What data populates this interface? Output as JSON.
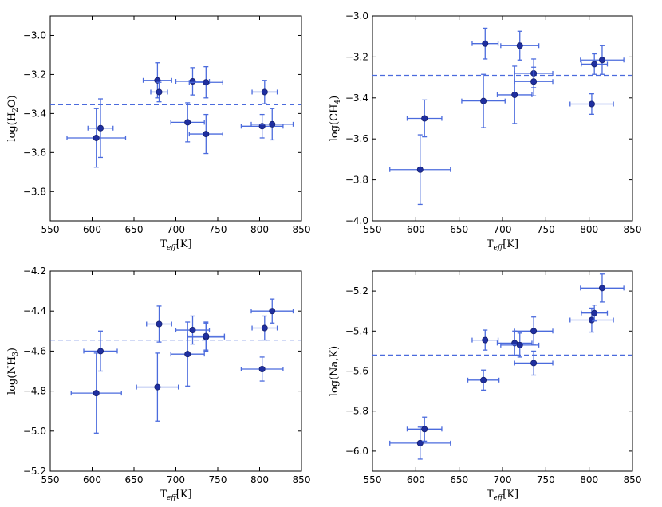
{
  "colors": {
    "marker": "#1f2fa0",
    "errorbar": "#4b6bdd",
    "reference_line": "#4b6bdd",
    "frame": "#000000"
  },
  "chart_data": [
    {
      "type": "scatter",
      "panel": "top-left",
      "xlabel": "T_eff[K]",
      "ylabel": "log(H2O)",
      "xlim": [
        550,
        850
      ],
      "ylim": [
        -3.95,
        -2.9
      ],
      "xticks": [
        550,
        600,
        650,
        700,
        750,
        800,
        850
      ],
      "yticks": [
        -3.8,
        -3.6,
        -3.4,
        -3.2,
        -3.0
      ],
      "xtick_labels": [
        "550",
        "600",
        "650",
        "700",
        "750",
        "800",
        "850"
      ],
      "ytick_labels": [
        "−3.8",
        "−3.6",
        "−3.4",
        "−3.2",
        "−3.0"
      ],
      "reference_line": -3.355,
      "points": [
        {
          "x": 605,
          "y": -3.525,
          "xerr": 35,
          "yerr": 0.15
        },
        {
          "x": 610,
          "y": -3.475,
          "xerr": 15,
          "yerr": 0.15
        },
        {
          "x": 678,
          "y": -3.23,
          "xerr": 17,
          "yerr": 0.09
        },
        {
          "x": 680,
          "y": -3.29,
          "xerr": 10,
          "yerr": 0.05
        },
        {
          "x": 714,
          "y": -3.445,
          "xerr": 20,
          "yerr": 0.1
        },
        {
          "x": 720,
          "y": -3.235,
          "xerr": 20,
          "yerr": 0.07
        },
        {
          "x": 736,
          "y": -3.24,
          "xerr": 20,
          "yerr": 0.08
        },
        {
          "x": 736,
          "y": -3.505,
          "xerr": 20,
          "yerr": 0.1
        },
        {
          "x": 803,
          "y": -3.465,
          "xerr": 25,
          "yerr": 0.06
        },
        {
          "x": 806,
          "y": -3.29,
          "xerr": 15,
          "yerr": 0.06
        },
        {
          "x": 815,
          "y": -3.455,
          "xerr": 25,
          "yerr": 0.08
        }
      ]
    },
    {
      "type": "scatter",
      "panel": "top-right",
      "xlabel": "T_eff[K]",
      "ylabel": "log(CH4)",
      "xlim": [
        550,
        850
      ],
      "ylim": [
        -4.0,
        -3.0
      ],
      "xticks": [
        550,
        600,
        650,
        700,
        750,
        800,
        850
      ],
      "yticks": [
        -4.0,
        -3.8,
        -3.6,
        -3.4,
        -3.2,
        -3.0
      ],
      "xtick_labels": [
        "550",
        "600",
        "650",
        "700",
        "750",
        "800",
        "850"
      ],
      "ytick_labels": [
        "−4.0",
        "−3.8",
        "−3.6",
        "−3.4",
        "−3.2",
        "−3.0"
      ],
      "reference_line": -3.29,
      "points": [
        {
          "x": 605,
          "y": -3.75,
          "xerr": 35,
          "yerr": 0.17
        },
        {
          "x": 610,
          "y": -3.5,
          "xerr": 20,
          "yerr": 0.09
        },
        {
          "x": 678,
          "y": -3.415,
          "xerr": 25,
          "yerr": 0.13
        },
        {
          "x": 680,
          "y": -3.135,
          "xerr": 15,
          "yerr": 0.075
        },
        {
          "x": 714,
          "y": -3.385,
          "xerr": 20,
          "yerr": 0.14
        },
        {
          "x": 720,
          "y": -3.145,
          "xerr": 22,
          "yerr": 0.07
        },
        {
          "x": 736,
          "y": -3.28,
          "xerr": 22,
          "yerr": 0.07
        },
        {
          "x": 736,
          "y": -3.32,
          "xerr": 22,
          "yerr": 0.07
        },
        {
          "x": 803,
          "y": -3.43,
          "xerr": 25,
          "yerr": 0.05
        },
        {
          "x": 806,
          "y": -3.235,
          "xerr": 15,
          "yerr": 0.05
        },
        {
          "x": 815,
          "y": -3.215,
          "xerr": 25,
          "yerr": 0.07
        }
      ]
    },
    {
      "type": "scatter",
      "panel": "bottom-left",
      "xlabel": "T_eff[K]",
      "ylabel": "log(NH3)",
      "xlim": [
        550,
        850
      ],
      "ylim": [
        -5.2,
        -4.2
      ],
      "xticks": [
        550,
        600,
        650,
        700,
        750,
        800,
        850
      ],
      "yticks": [
        -5.2,
        -5.0,
        -4.8,
        -4.6,
        -4.4,
        -4.2
      ],
      "xtick_labels": [
        "550",
        "600",
        "650",
        "700",
        "750",
        "800",
        "850"
      ],
      "ytick_labels": [
        "−5.2",
        "−5.0",
        "−4.8",
        "−4.6",
        "−4.4",
        "−4.2"
      ],
      "reference_line": -4.545,
      "points": [
        {
          "x": 605,
          "y": -4.81,
          "xerr": 30,
          "yerr": 0.2
        },
        {
          "x": 610,
          "y": -4.6,
          "xerr": 20,
          "yerr": 0.1
        },
        {
          "x": 678,
          "y": -4.78,
          "xerr": 25,
          "yerr": 0.17
        },
        {
          "x": 680,
          "y": -4.465,
          "xerr": 15,
          "yerr": 0.09
        },
        {
          "x": 714,
          "y": -4.615,
          "xerr": 20,
          "yerr": 0.16
        },
        {
          "x": 720,
          "y": -4.495,
          "xerr": 20,
          "yerr": 0.07
        },
        {
          "x": 736,
          "y": -4.53,
          "xerr": 22,
          "yerr": 0.07
        },
        {
          "x": 736,
          "y": -4.525,
          "xerr": 22,
          "yerr": 0.07
        },
        {
          "x": 803,
          "y": -4.69,
          "xerr": 25,
          "yerr": 0.06
        },
        {
          "x": 806,
          "y": -4.485,
          "xerr": 15,
          "yerr": 0.06
        },
        {
          "x": 815,
          "y": -4.4,
          "xerr": 25,
          "yerr": 0.06
        }
      ]
    },
    {
      "type": "scatter",
      "panel": "bottom-right",
      "xlabel": "T_eff[K]",
      "ylabel": "log(Na,K)",
      "xlim": [
        550,
        850
      ],
      "ylim": [
        -6.1,
        -5.1
      ],
      "xticks": [
        550,
        600,
        650,
        700,
        750,
        800,
        850
      ],
      "yticks": [
        -6.0,
        -5.8,
        -5.6,
        -5.4,
        -5.2
      ],
      "xtick_labels": [
        "550",
        "600",
        "650",
        "700",
        "750",
        "800",
        "850"
      ],
      "ytick_labels": [
        "−6.0",
        "−5.8",
        "−5.6",
        "−5.4",
        "−5.2"
      ],
      "reference_line": -5.52,
      "points": [
        {
          "x": 605,
          "y": -5.96,
          "xerr": 35,
          "yerr": 0.08
        },
        {
          "x": 610,
          "y": -5.89,
          "xerr": 20,
          "yerr": 0.06
        },
        {
          "x": 678,
          "y": -5.645,
          "xerr": 18,
          "yerr": 0.05
        },
        {
          "x": 680,
          "y": -5.445,
          "xerr": 15,
          "yerr": 0.05
        },
        {
          "x": 714,
          "y": -5.46,
          "xerr": 20,
          "yerr": 0.06
        },
        {
          "x": 720,
          "y": -5.47,
          "xerr": 22,
          "yerr": 0.06
        },
        {
          "x": 736,
          "y": -5.56,
          "xerr": 22,
          "yerr": 0.06
        },
        {
          "x": 736,
          "y": -5.4,
          "xerr": 22,
          "yerr": 0.07
        },
        {
          "x": 803,
          "y": -5.345,
          "xerr": 25,
          "yerr": 0.06
        },
        {
          "x": 806,
          "y": -5.31,
          "xerr": 15,
          "yerr": 0.04
        },
        {
          "x": 815,
          "y": -5.185,
          "xerr": 25,
          "yerr": 0.07
        }
      ]
    }
  ]
}
